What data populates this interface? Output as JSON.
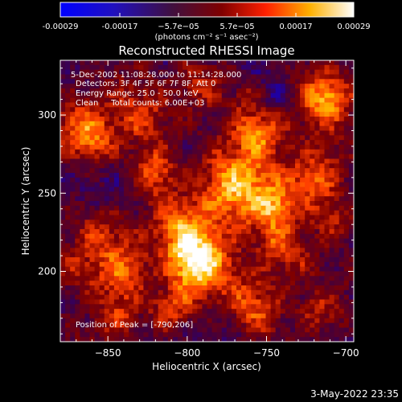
{
  "chart_data": {
    "type": "heatmap",
    "title": "Reconstructed RHESSI Image",
    "xlabel": "Heliocentric X (arcsec)",
    "ylabel": "Heliocentric Y (arcsec)",
    "xlim": [
      -880,
      -695
    ],
    "ylim": [
      155,
      335
    ],
    "xticks": [
      -850,
      -800,
      -750,
      -700
    ],
    "yticks": [
      200,
      250,
      300
    ],
    "colorbar": {
      "ticks": [
        "-0.00029",
        "-0.00017",
        "−5.7e−05",
        "5.7e−05",
        "0.00017",
        "0.00029"
      ],
      "unit_label": "(photons cm⁻² s⁻¹ asec⁻²)",
      "range": [
        -0.00029,
        0.00029
      ],
      "colormap": [
        "#0000ff",
        "#400040",
        "#800000",
        "#ff4000",
        "#ffc000",
        "#ffffff"
      ]
    },
    "annotations": [
      "5-Dec-2002 11:08:28.000 to 11:14:28.000",
      "Detectors: 3F 4F 5F 6F 7F 8F, Att 0",
      "Energy Range: 25.0 - 50.0 keV",
      "Clean     Total counts: 6.00E+03"
    ],
    "peak_text": "Position of Peak = [-790,206]",
    "peak": {
      "x": -790,
      "y": 206
    },
    "timestamp": "3-May-2022 23:35",
    "grid": false
  }
}
